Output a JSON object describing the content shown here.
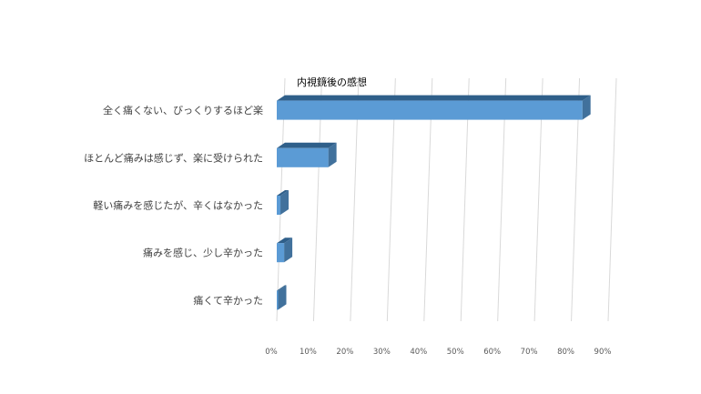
{
  "chart_data": {
    "type": "bar",
    "orientation": "horizontal",
    "title": "内視鏡後の感想",
    "categories": [
      "全く痛くない、びっくりするほど楽",
      "ほとんど痛みは感じず、楽に受けられた",
      "軽い痛みを感じたが、辛くはなかった",
      "痛みを感じ、少し辛かった",
      "痛くて辛かった"
    ],
    "values": [
      83,
      14,
      1,
      2,
      0
    ],
    "value_unit": "%",
    "xlim": [
      0,
      90
    ],
    "x_ticks": [
      "0%",
      "10%",
      "20%",
      "30%",
      "40%",
      "50%",
      "60%",
      "70%",
      "80%",
      "90%"
    ],
    "grid": true,
    "legend": "none",
    "style": "3d",
    "colors": {
      "bar_front": "#5b9bd5",
      "bar_top": "#2f5f8a",
      "bar_side": "#41719c",
      "grid": "#d9d9d9"
    }
  }
}
